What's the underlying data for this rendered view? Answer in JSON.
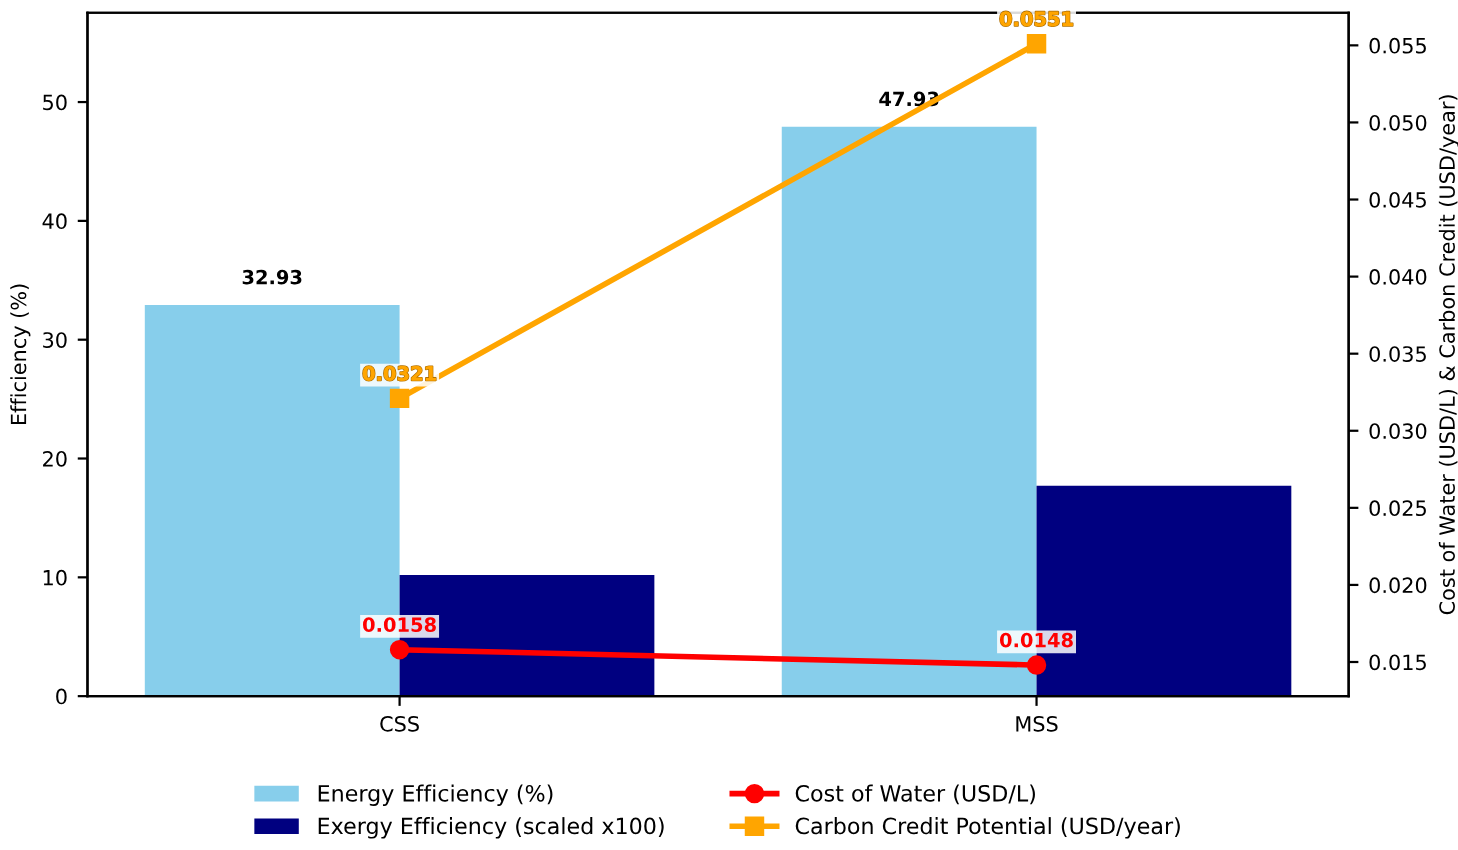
{
  "chart_data": {
    "type": "bar",
    "categories": [
      "CSS",
      "MSS"
    ],
    "ylabel": "Efficiency (%)",
    "y2label": "Cost of Water (USD/L) & Carbon Credit (USD/year)",
    "ylim": [
      0,
      57.516
    ],
    "yticks": [
      0,
      10,
      20,
      30,
      40,
      50
    ],
    "y2lim": [
      0.012785,
      0.057115
    ],
    "y2ticks": [
      {
        "value": 0.015,
        "label": "0.015"
      },
      {
        "value": 0.02,
        "label": "0.020"
      },
      {
        "value": 0.025,
        "label": "0.025"
      },
      {
        "value": 0.03,
        "label": "0.030"
      },
      {
        "value": 0.035,
        "label": "0.035"
      },
      {
        "value": 0.04,
        "label": "0.040"
      },
      {
        "value": 0.045,
        "label": "0.045"
      },
      {
        "value": 0.05,
        "label": "0.050"
      },
      {
        "value": 0.055,
        "label": "0.055"
      }
    ],
    "legend": "bottom",
    "grid": false,
    "series": [
      {
        "name": "Energy Efficiency (%)",
        "color": "#87ceeb",
        "values": [
          32.93,
          47.93
        ],
        "value_labels": [
          "32.93",
          "47.93"
        ]
      },
      {
        "name": "Exergy Efficiency (scaled x100)",
        "color": "#000080",
        "values": [
          10.2,
          17.7
        ],
        "value_labels": [
          null,
          null
        ]
      },
      {
        "name": "Cost of Water (USD/L)",
        "type": "line",
        "axis": "y2",
        "marker": "circle",
        "color": "#ff0000",
        "values": [
          0.0158,
          0.0148
        ],
        "value_labels": [
          "0.0158",
          "0.0148"
        ]
      },
      {
        "name": "Carbon Credit Potential (USD/year)",
        "type": "line",
        "axis": "y2",
        "marker": "square",
        "color": "#ffa500",
        "values": [
          0.0321,
          0.0551
        ],
        "value_labels": [
          "0.0321",
          "0.0551"
        ]
      }
    ]
  }
}
